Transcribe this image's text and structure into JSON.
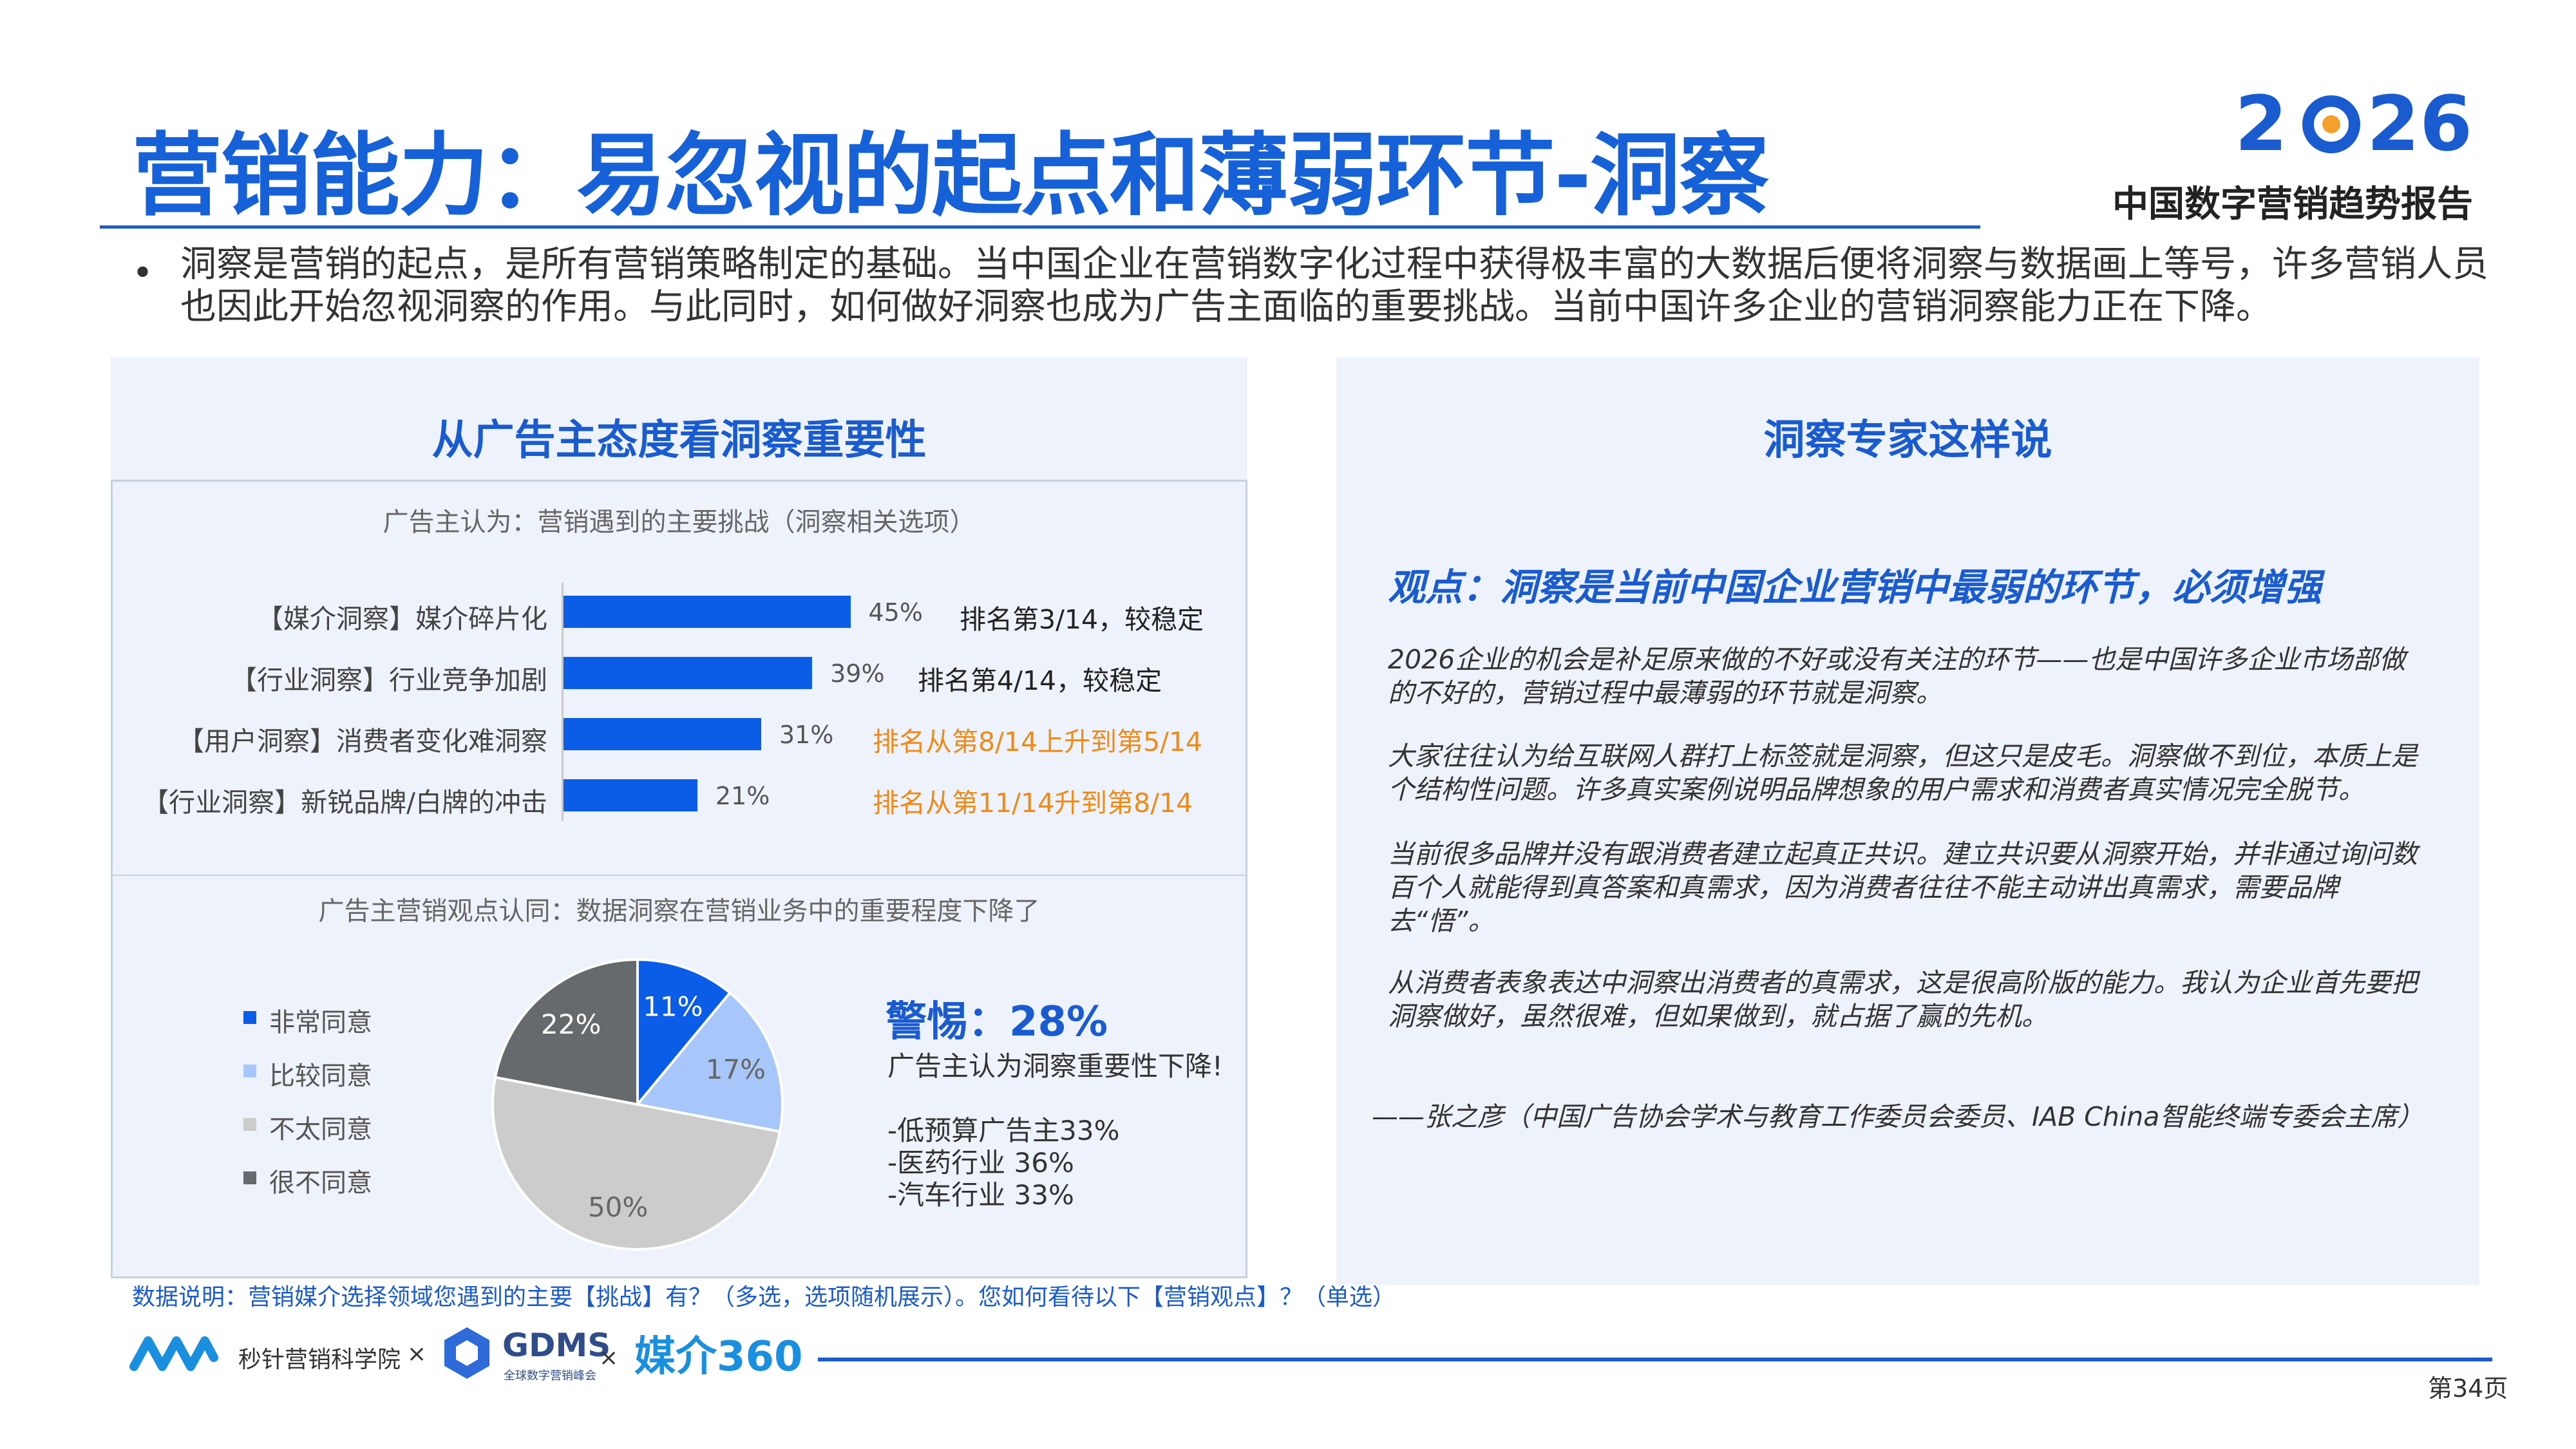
{
  "header": {
    "title": "营销能力：易忽视的起点和薄弱环节-洞察",
    "logo_year": "2026",
    "logo_subtitle": "中国数字营销趋势报告"
  },
  "intro": {
    "bullet": "•",
    "text": "洞察是营销的起点，是所有营销策略制定的基础。当中国企业在营销数字化过程中获得极丰富的大数据后便将洞察与数据画上等号，许多营销人员也因此开始忽视洞察的作用。与此同时，如何做好洞察也成为广告主面临的重要挑战。当前中国许多企业的营销洞察能力正在下降。"
  },
  "left_panel": {
    "title": "从广告主态度看洞察重要性",
    "bar_section_title": "广告主认为：营销遇到的主要挑战（洞察相关选项）",
    "pie_section_title": "广告主营销观点认同：数据洞察在营销业务中的重要程度下降了",
    "ranks": [
      {
        "text": "排名第3/14，较稳定",
        "color": "#222222"
      },
      {
        "text": "排名第4/14，较稳定",
        "color": "#222222"
      },
      {
        "text": "排名从第8/14上升到第5/14",
        "color": "#ef8a17"
      },
      {
        "text": "排名从第11/14升到第8/14",
        "color": "#ef8a17"
      }
    ],
    "warning": {
      "headline": "警惕：28%",
      "line1": "广告主认为洞察重要性下降!",
      "line2": "-低预算广告主33%",
      "line3": "-医药行业 36%",
      "line4": "-汽车行业 33%"
    }
  },
  "chart_data": [
    {
      "type": "bar",
      "orientation": "horizontal",
      "title": "广告主认为：营销遇到的主要挑战（洞察相关选项）",
      "categories": [
        "【媒介洞察】媒介碎片化",
        "【行业洞察】行业竞争加剧",
        "【用户洞察】消费者变化难洞察",
        "【行业洞察】新锐品牌/白牌的冲击"
      ],
      "values": [
        45,
        39,
        31,
        21
      ],
      "value_labels": [
        "45%",
        "39%",
        "31%",
        "21%"
      ],
      "xlim": [
        0,
        100
      ],
      "color": "#0b5de8"
    },
    {
      "type": "pie",
      "title": "广告主营销观点认同：数据洞察在营销业务中的重要程度下降了",
      "categories": [
        "非常同意",
        "比较同意",
        "不太同意",
        "很不同意"
      ],
      "values": [
        11,
        17,
        50,
        22
      ],
      "value_labels": [
        "11%",
        "17%",
        "50%",
        "22%"
      ],
      "colors": [
        "#0b5de8",
        "#a7c7fa",
        "#cccccc",
        "#666a6c"
      ],
      "label_colors": [
        "#ffffff",
        "#666666",
        "#666666",
        "#ffffff"
      ],
      "legend_position": "left"
    }
  ],
  "right_panel": {
    "title": "洞察专家这样说",
    "headline": "观点：洞察是当前中国企业营销中最弱的环节，必须增强",
    "paragraphs": [
      "2026企业的机会是补足原来做的不好或没有关注的环节——也是中国许多企业市场部做的不好的，营销过程中最薄弱的环节就是洞察。",
      "大家往往认为给互联网人群打上标签就是洞察，但这只是皮毛。洞察做不到位，本质上是个结构性问题。许多真实案例说明品牌想象的用户需求和消费者真实情况完全脱节。",
      "当前很多品牌并没有跟消费者建立起真正共识。建立共识要从洞察开始，并非通过询问数百个人就能得到真答案和真需求，因为消费者往往不能主动讲出真需求，需要品牌去“悟”。",
      "从消费者表象表达中洞察出消费者的真需求，这是很高阶版的能力。我认为企业首先要把洞察做好，虽然很难，但如果做到，就占据了赢的先机。"
    ],
    "signature": "——张之彦（中国广告协会学术与教育工作委员会委员、IAB China智能终端专委会主席）"
  },
  "footnote": "数据说明：营销媒介选择领域您遇到的主要【挑战】有？（多选，选项随机展示）。您如何看待以下【营销观点】？（单选）",
  "footer": {
    "org1": "秒针营销科学院",
    "x1": "×",
    "org2": "GDMS",
    "org2_sub": "全球数字营销峰会",
    "x2": "×",
    "org3": "媒介360",
    "page": "第34页"
  }
}
